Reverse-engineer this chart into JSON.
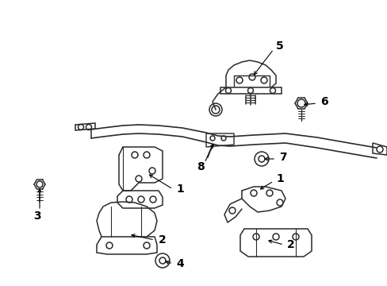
{
  "background_color": "#ffffff",
  "line_color": "#2a2a2a",
  "text_color": "#000000",
  "figure_width": 4.89,
  "figure_height": 3.6,
  "dpi": 100
}
